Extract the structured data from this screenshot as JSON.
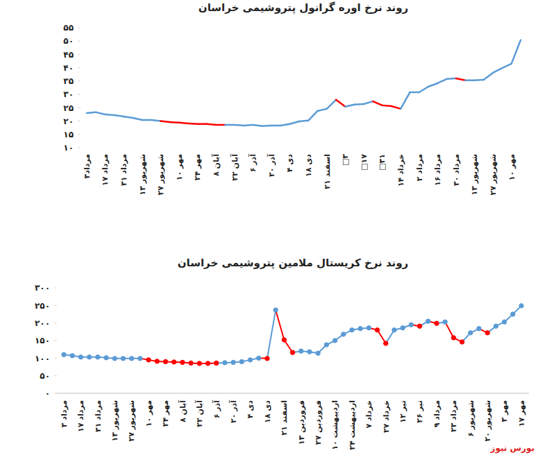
{
  "chart_data": [
    {
      "type": "line",
      "title": "روند نرخ اوره گرانول پتروشیمی خراسان",
      "categories": [
        "۳مرداد",
        null,
        "۱۷ مرداد",
        null,
        "۳۱ مرداد",
        null,
        "۱۳ شهریور",
        null,
        "۲۷ شهریور",
        null,
        "۱۰ مهر",
        null,
        "۲۴ مهر",
        null,
        "۸ آبان",
        null,
        "۲۲ آبان",
        null,
        "۶ آذر",
        null,
        "۲۰ آذر",
        null,
        "۴ دی",
        null,
        "۱۸ دی",
        null,
        "۲۱ اسفند",
        null,
        "□۳",
        null,
        "□۱۷",
        null,
        "□۳۱",
        null,
        "۱۴ خرداد",
        null,
        "۲ مرداد",
        null,
        "۱۶ مرداد",
        null,
        "۳۰ مرداد",
        null,
        "۱۳ شهریور",
        null,
        "۲۷ شهریور",
        null,
        "۱۰ مهر",
        null
      ],
      "series": [
        {
          "values": [
            23.0,
            23.3,
            22.5,
            22.2,
            21.7,
            21.2,
            20.4,
            20.4,
            20.0,
            19.6,
            19.4,
            19.1,
            18.9,
            18.9,
            18.6,
            18.6,
            18.6,
            18.3,
            18.6,
            18.1,
            18.3,
            18.3,
            18.9,
            19.9,
            20.2,
            23.8,
            24.6,
            28.0,
            25.4,
            26.2,
            26.4,
            27.4,
            25.9,
            25.6,
            24.6,
            30.8,
            30.8,
            32.9,
            34.2,
            35.8,
            36.0,
            35.3,
            35.3,
            35.5,
            38.1,
            39.9,
            41.5,
            50.4
          ],
          "colors": [
            "#5b9bd5",
            "#5b9bd5",
            "#5b9bd5",
            "#5b9bd5",
            "#5b9bd5",
            "#5b9bd5",
            "#5b9bd5",
            "#5b9bd5",
            "#5b9bd5",
            "#ff0000",
            "#ff0000",
            "#ff0000",
            "#ff0000",
            "#ff0000",
            "#ff0000",
            "#ff0000",
            "#5b9bd5",
            "#5b9bd5",
            "#5b9bd5",
            "#5b9bd5",
            "#5b9bd5",
            "#5b9bd5",
            "#5b9bd5",
            "#5b9bd5",
            "#5b9bd5",
            "#5b9bd5",
            "#5b9bd5",
            "#5b9bd5",
            "#ff0000",
            "#5b9bd5",
            "#5b9bd5",
            "#5b9bd5",
            "#ff0000",
            "#ff0000",
            "#ff0000",
            "#5b9bd5",
            "#5b9bd5",
            "#5b9bd5",
            "#5b9bd5",
            "#5b9bd5",
            "#5b9bd5",
            "#ff0000",
            "#5b9bd5",
            "#5b9bd5",
            "#5b9bd5",
            "#5b9bd5",
            "#5b9bd5",
            "#5b9bd5"
          ]
        }
      ],
      "ylim": [
        10,
        55
      ],
      "yticks": [
        {
          "value": 10,
          "label": "۱۰"
        },
        {
          "value": 15,
          "label": "۱۵"
        },
        {
          "value": 20,
          "label": "۲۰"
        },
        {
          "value": 25,
          "label": "۲۵"
        },
        {
          "value": 30,
          "label": "۳۰"
        },
        {
          "value": 35,
          "label": "۳۵"
        },
        {
          "value": 40,
          "label": "۴۰"
        },
        {
          "value": 45,
          "label": "۴۵"
        },
        {
          "value": 50,
          "label": "۵۰"
        },
        {
          "value": 55,
          "label": "۵۵"
        }
      ],
      "grid": false
    },
    {
      "type": "line",
      "title": "روند نرخ کریستال ملامین پتروشیمی خراسان",
      "categories": [
        "۳ مرداد",
        null,
        "۱۷ مرداد",
        null,
        "۳۱ مرداد",
        null,
        "۱۳ شهریور",
        null,
        "۲۷ شهریور",
        null,
        "۱۰ مهر",
        null,
        "۲۴ مهر",
        null,
        "۸ آبان",
        null,
        "۲۲ آبان",
        null,
        "۶ آذر",
        null,
        "۲۰ آذر",
        null,
        "۴ دی",
        null,
        "۱۸ دی",
        null,
        "۲۱ اسفند",
        null,
        "۱۳ فروردین",
        null,
        "۲۷ فروردین",
        null,
        "۱۰ اردیبهشت",
        null,
        "۲۴ اردیبهشت",
        null,
        "۷ خرداد",
        null,
        "۲۷ خرداد",
        null,
        "۱۲ تیر",
        null,
        "۲۶ تیر",
        null,
        "۹ مرداد",
        null,
        "۲۳ مرداد",
        null,
        "۶ شهریور",
        null,
        "۲۰ شهریور",
        null,
        "۳ مهر",
        null,
        "۱۷ مهر"
      ],
      "series": [
        {
          "values": [
            110,
            107,
            103,
            103,
            103,
            101,
            99,
            99,
            99,
            99,
            95,
            91,
            90,
            89,
            88,
            86,
            85,
            85,
            86,
            87,
            88,
            90,
            95,
            100,
            99,
            237,
            152,
            116,
            120,
            118,
            114,
            138,
            150,
            168,
            180,
            184,
            186,
            180,
            142,
            180,
            186,
            195,
            191,
            205,
            199,
            203,
            158,
            146,
            172,
            184,
            172,
            191,
            203,
            225,
            249
          ],
          "colors": [
            "#5b9bd5",
            "#5b9bd5",
            "#5b9bd5",
            "#5b9bd5",
            "#5b9bd5",
            "#5b9bd5",
            "#5b9bd5",
            "#5b9bd5",
            "#5b9bd5",
            "#5b9bd5",
            "#ff0000",
            "#ff0000",
            "#ff0000",
            "#ff0000",
            "#ff0000",
            "#ff0000",
            "#ff0000",
            "#ff0000",
            "#ff0000",
            "#5b9bd5",
            "#5b9bd5",
            "#5b9bd5",
            "#5b9bd5",
            "#5b9bd5",
            "#ff0000",
            "#5b9bd5",
            "#ff0000",
            "#ff0000",
            "#5b9bd5",
            "#5b9bd5",
            "#5b9bd5",
            "#5b9bd5",
            "#5b9bd5",
            "#5b9bd5",
            "#5b9bd5",
            "#5b9bd5",
            "#5b9bd5",
            "#ff0000",
            "#ff0000",
            "#5b9bd5",
            "#5b9bd5",
            "#5b9bd5",
            "#ff0000",
            "#5b9bd5",
            "#ff0000",
            "#5b9bd5",
            "#ff0000",
            "#ff0000",
            "#5b9bd5",
            "#5b9bd5",
            "#ff0000",
            "#5b9bd5",
            "#5b9bd5",
            "#5b9bd5",
            "#5b9bd5"
          ],
          "marker": "circle"
        }
      ],
      "ylim": [
        0,
        300
      ],
      "yticks": [
        {
          "value": 0,
          "label": "۰"
        },
        {
          "value": 50,
          "label": "۵۰"
        },
        {
          "value": 100,
          "label": "۱۰۰"
        },
        {
          "value": 150,
          "label": "۱۵۰"
        },
        {
          "value": 200,
          "label": "۲۰۰"
        },
        {
          "value": 250,
          "label": "۲۵۰"
        },
        {
          "value": 300,
          "label": "۳۰۰"
        }
      ],
      "grid": false,
      "annotations": [
        "بورس نیوز"
      ]
    }
  ]
}
